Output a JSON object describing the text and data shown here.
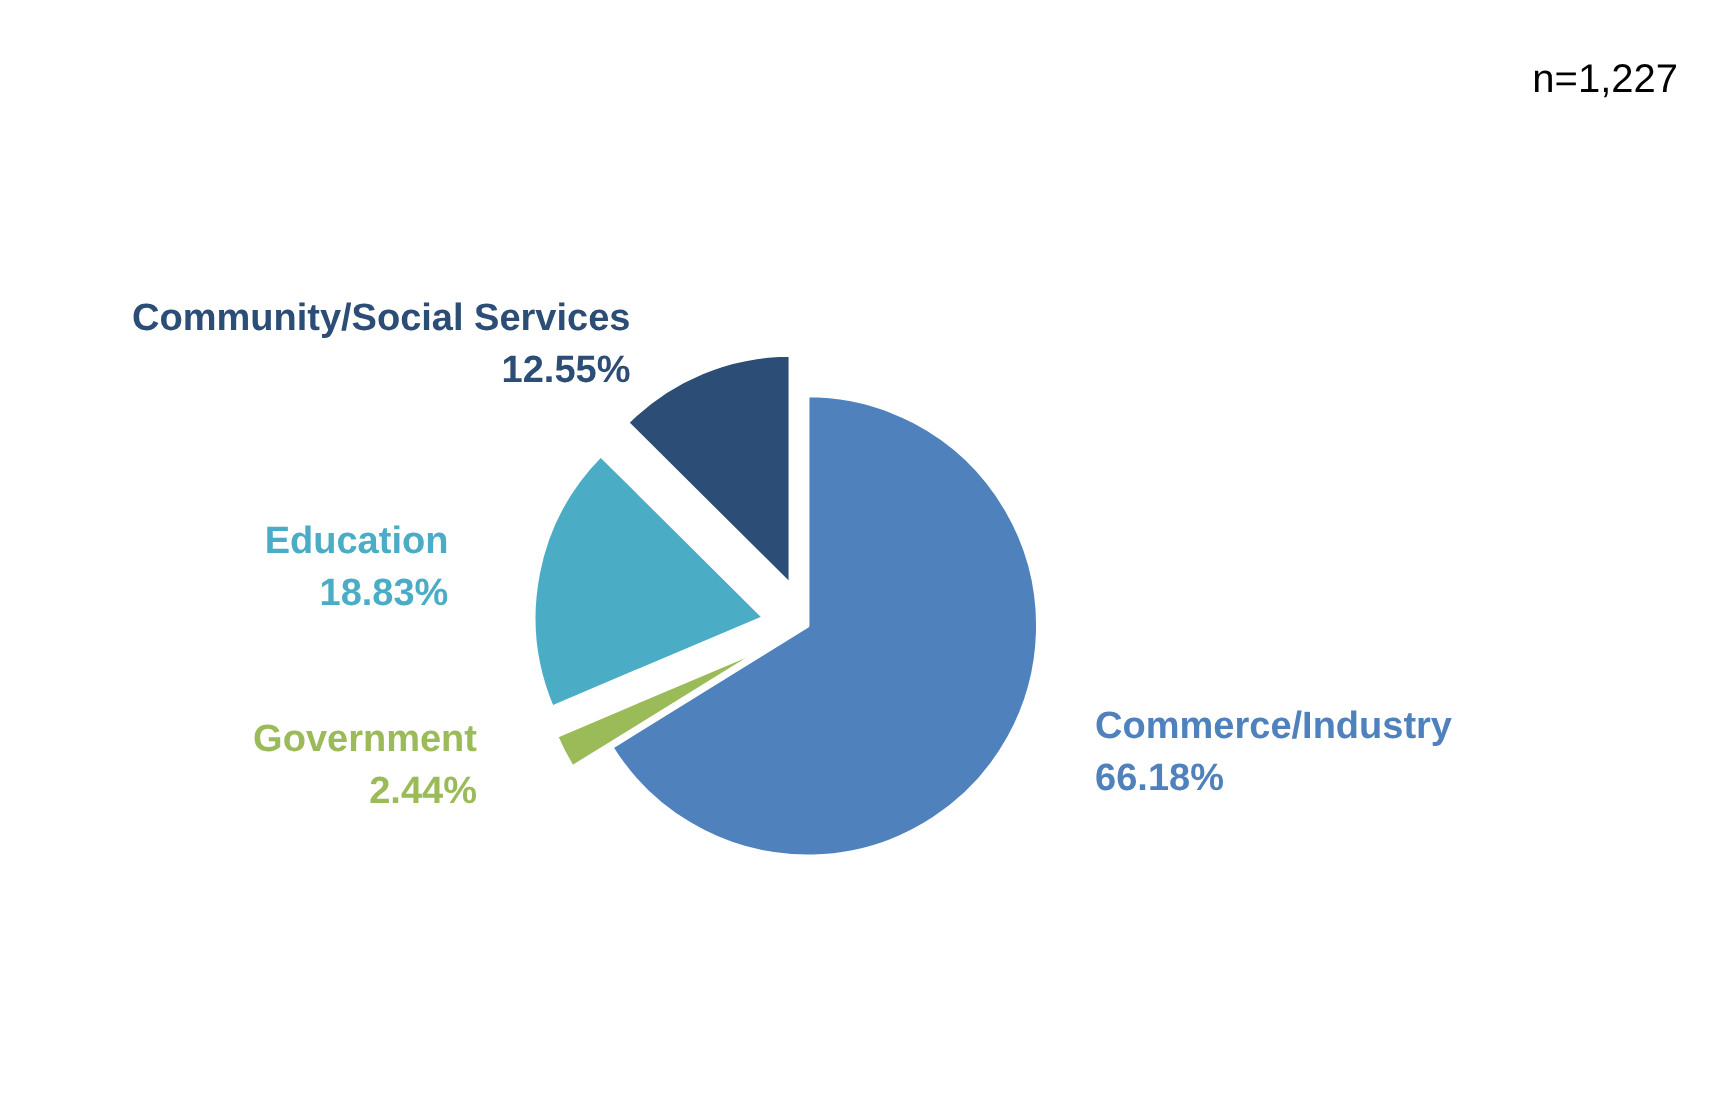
{
  "chart_data": {
    "type": "pie",
    "categories": [
      "Commerce/Industry",
      "Government",
      "Education",
      "Community/Social Services"
    ],
    "values": [
      66.18,
      2.44,
      18.83,
      12.55
    ],
    "colors": [
      "#4f81bd",
      "#9bbb59",
      "#4bacc6",
      "#2c4d75"
    ],
    "value_labels": [
      "66.18%",
      "2.44%",
      "18.83%",
      "12.55%"
    ],
    "annotations": [
      "n=1,227"
    ]
  }
}
